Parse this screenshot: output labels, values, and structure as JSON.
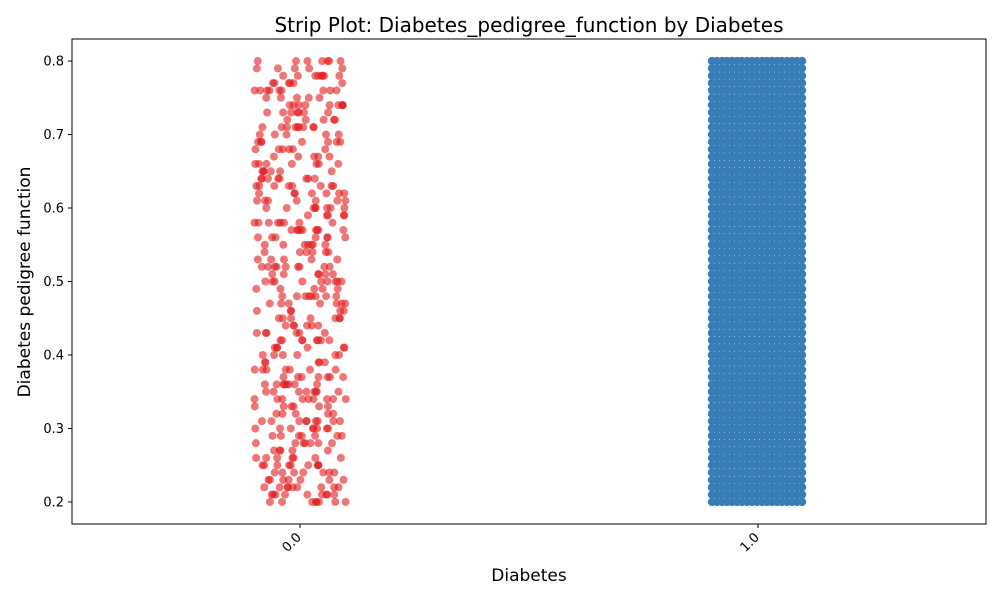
{
  "chart_data": {
    "type": "scatter",
    "subtype": "strip",
    "title": "Strip Plot: Diabetes_pedigree_function by Diabetes",
    "xlabel": "Diabetes",
    "ylabel": "Diabetes pedigree function",
    "categories": [
      "0.0",
      "1.0"
    ],
    "ylim": [
      0.17,
      0.83
    ],
    "yticks": [
      0.2,
      0.3,
      0.4,
      0.5,
      0.6,
      0.7,
      0.8
    ],
    "ytick_labels": [
      "0.2",
      "0.3",
      "0.4",
      "0.5",
      "0.6",
      "0.7",
      "0.8"
    ],
    "x_tick_rotation_deg": 45,
    "grid": false,
    "legend": "none",
    "series": [
      {
        "category": "0.0",
        "color": "#e31a1c",
        "alpha": 0.6,
        "value_step": 0.01,
        "value_range": [
          0.2,
          0.8
        ],
        "value_distribution": "roughly uniform, sparser than category 1.0"
      },
      {
        "category": "1.0",
        "color": "#377eb8",
        "alpha": 1.0,
        "value_step": 0.01,
        "value_range": [
          0.2,
          0.8
        ],
        "value_distribution": "dense, fully covering the range"
      }
    ]
  }
}
